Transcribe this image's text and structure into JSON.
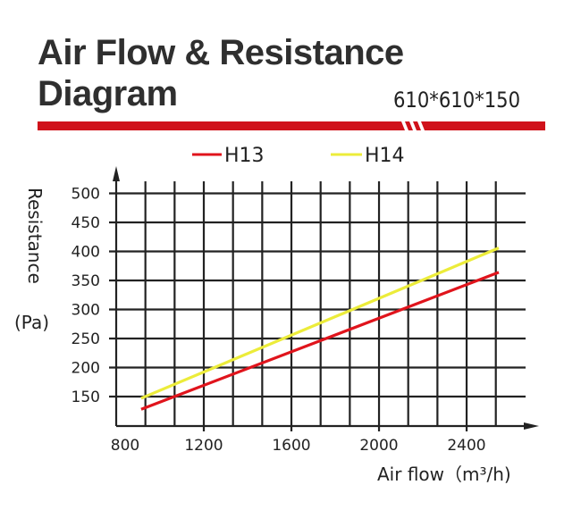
{
  "header": {
    "title_line1": "Air Flow & Resistance",
    "title_line2": "Diagram",
    "size_label": "610*610*150",
    "bar_color": "#d0121b"
  },
  "legend": [
    {
      "label": "H13",
      "color": "#e0141c"
    },
    {
      "label": "H14",
      "color": "#ecec3a"
    }
  ],
  "axes": {
    "y_label": "Resistance",
    "y_unit": "(Pa)",
    "x_label": "Air flow（m³/h)",
    "y_ticks": [
      "500",
      "450",
      "400",
      "350",
      "300",
      "250",
      "200",
      "150"
    ],
    "x_ticks": [
      "800",
      "1200",
      "1600",
      "2000",
      "2400"
    ]
  },
  "chart_data": {
    "type": "line",
    "title": "Air Flow & Resistance Diagram",
    "subtitle": "610*610*150",
    "xlabel": "Air flow (m³/h)",
    "ylabel": "Resistance (Pa)",
    "xlim": [
      800,
      2700
    ],
    "ylim": [
      100,
      500
    ],
    "x_ticks": [
      800,
      1200,
      1600,
      2000,
      2400
    ],
    "y_ticks": [
      150,
      200,
      250,
      300,
      350,
      400,
      450,
      500
    ],
    "grid": true,
    "legend_position": "top",
    "series": [
      {
        "name": "H13",
        "color": "#e0141c",
        "x": [
          914,
          2547
        ],
        "y": [
          128,
          364
        ]
      },
      {
        "name": "H14",
        "color": "#ecec3a",
        "x": [
          914,
          2547
        ],
        "y": [
          147,
          406
        ]
      }
    ]
  }
}
